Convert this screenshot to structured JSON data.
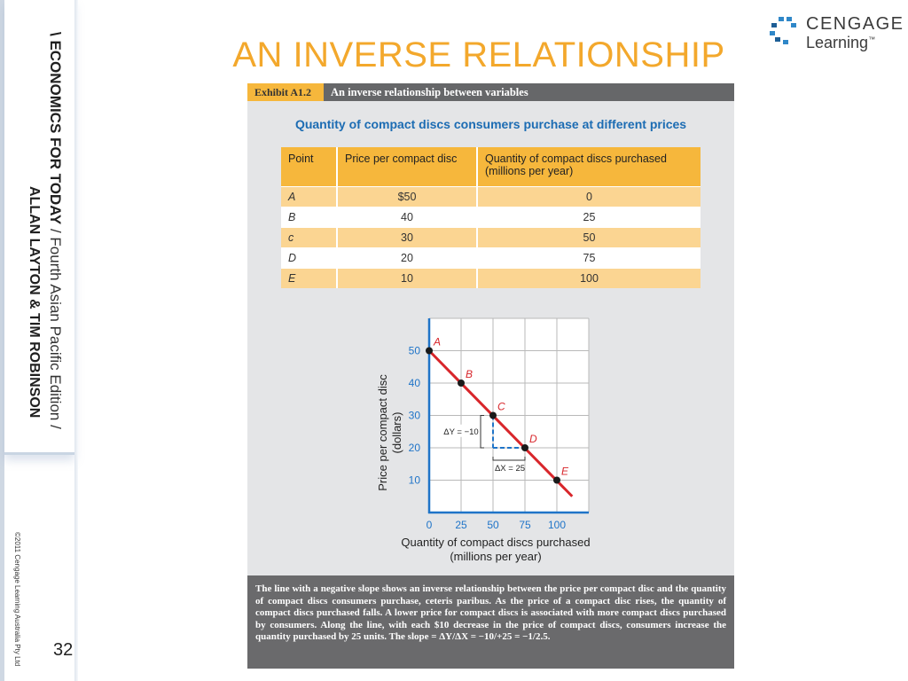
{
  "sidebar": {
    "line1_bold": "\\ ECONOMICS FOR TODAY",
    "line1_rest": " / Fourth Asian Pacific Edition /",
    "authors": "ALLAN LAYTON & TIM ROBINSON",
    "copyright": "©2011 Cengage Learning Australia Pty Ltd",
    "slide_number": "32"
  },
  "title": "AN INVERSE RELATIONSHIP",
  "logo": {
    "line1": "CENGAGE",
    "line2": "Learning",
    "tm": "™",
    "colors": [
      "#2f87c8",
      "#1d5e96"
    ]
  },
  "exhibit": {
    "label": "Exhibit A1.2",
    "title": "An inverse relationship between variables",
    "table_heading": "Quantity of compact discs consumers purchase at different prices",
    "columns": [
      "Point",
      "Price per compact disc",
      "Quantity of compact discs purchased (millions per year)"
    ],
    "rows": [
      {
        "point": "A",
        "price": "$50",
        "quantity": "0"
      },
      {
        "point": "B",
        "price": "40",
        "quantity": "25"
      },
      {
        "point": "c",
        "price": "30",
        "quantity": "50"
      },
      {
        "point": "D",
        "price": "20",
        "quantity": "75"
      },
      {
        "point": "E",
        "price": "10",
        "quantity": "100"
      }
    ],
    "caption": "The line with a negative slope shows an inverse relationship between the price per compact disc and the quantity of compact discs consumers purchase, ceteris paribus. As the price of a compact disc rises, the quantity of compact discs purchased falls. A lower price for compact discs is associated with more compact discs purchased by consumers. Along the line, with each $10 decrease in the price of compact discs, consumers increase the quantity purchased by 25 units. The slope = ΔY/ΔX = −10/+25 = −1/2.5."
  },
  "colors": {
    "accent_orange": "#f6b73c",
    "title_orange": "#f3a82c",
    "axis_blue": "#1f74c8",
    "line_red": "#d8262b",
    "heading_blue": "#1c6cb3"
  },
  "chart_data": {
    "type": "line",
    "xlabel": "Quantity of compact discs purchased\n(millions per year)",
    "ylabel": "Price per compact disc\n(dollars)",
    "xticks": [
      0,
      25,
      50,
      75,
      100
    ],
    "yticks": [
      10,
      20,
      30,
      40,
      50
    ],
    "xlim": [
      0,
      125
    ],
    "ylim": [
      0,
      60
    ],
    "grid": true,
    "points": [
      {
        "label": "A",
        "x": 0,
        "y": 50
      },
      {
        "label": "B",
        "x": 25,
        "y": 40
      },
      {
        "label": "C",
        "x": 50,
        "y": 30
      },
      {
        "label": "D",
        "x": 75,
        "y": 20
      },
      {
        "label": "E",
        "x": 100,
        "y": 10
      }
    ],
    "line_extends_to": {
      "x": 112,
      "y": 5
    },
    "annotations": {
      "delta_y": "ΔY = −10",
      "delta_x": "ΔX = 25"
    }
  }
}
